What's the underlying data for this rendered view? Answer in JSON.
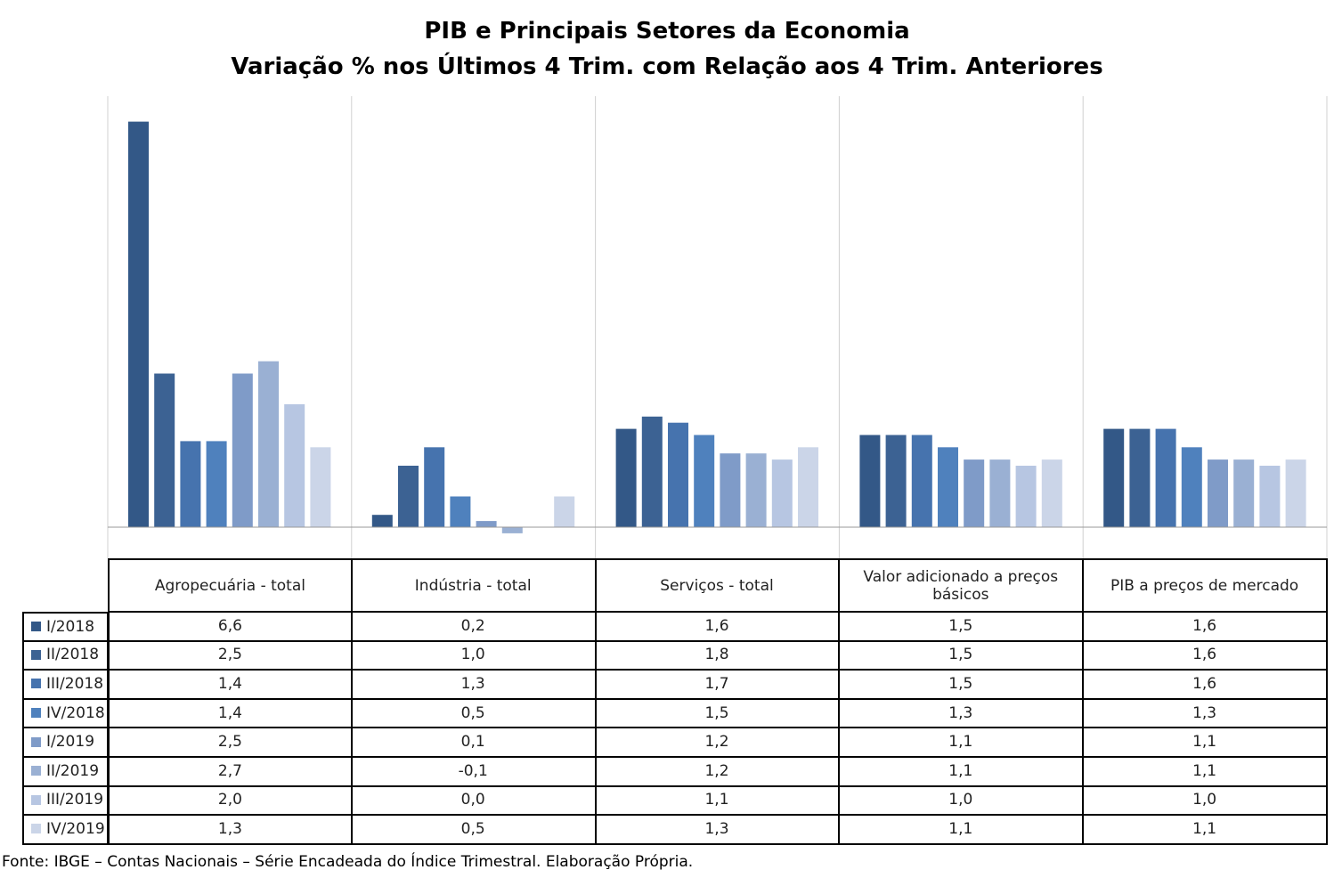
{
  "chart_data": {
    "type": "bar",
    "title": "PIB e Principais Setores da Economia",
    "subtitle": "Variação % nos Últimos 4 Trim. com Relação aos  4 Trim. Anteriores",
    "categories": [
      "Agropecuária - total",
      "Indústria - total",
      "Serviços - total",
      "Valor adicionado a preços básicos",
      "PIB a preços de mercado"
    ],
    "series": [
      {
        "name": "I/2018",
        "color": "#335887",
        "values": [
          6.6,
          0.2,
          1.6,
          1.5,
          1.6
        ],
        "labels": [
          "6,6",
          "0,2",
          "1,6",
          "1,5",
          "1,6"
        ]
      },
      {
        "name": "II/2018",
        "color": "#3C6293",
        "values": [
          2.5,
          1.0,
          1.8,
          1.5,
          1.6
        ],
        "labels": [
          "2,5",
          "1,0",
          "1,8",
          "1,5",
          "1,6"
        ]
      },
      {
        "name": "III/2018",
        "color": "#4673AE",
        "values": [
          1.4,
          1.3,
          1.7,
          1.5,
          1.6
        ],
        "labels": [
          "1,4",
          "1,3",
          "1,7",
          "1,5",
          "1,6"
        ]
      },
      {
        "name": "IV/2018",
        "color": "#4F81BD",
        "values": [
          1.4,
          0.5,
          1.5,
          1.3,
          1.3
        ],
        "labels": [
          "1,4",
          "0,5",
          "1,5",
          "1,3",
          "1,3"
        ]
      },
      {
        "name": "I/2019",
        "color": "#7F9BC8",
        "values": [
          2.5,
          0.1,
          1.2,
          1.1,
          1.1
        ],
        "labels": [
          "2,5",
          "0,1",
          "1,2",
          "1,1",
          "1,1"
        ]
      },
      {
        "name": "II/2019",
        "color": "#9AB0D3",
        "values": [
          2.7,
          -0.1,
          1.2,
          1.1,
          1.1
        ],
        "labels": [
          "2,7",
          "-0,1",
          "1,2",
          "1,1",
          "1,1"
        ]
      },
      {
        "name": "III/2019",
        "color": "#B7C6E2",
        "values": [
          2.0,
          0.0,
          1.1,
          1.0,
          1.0
        ],
        "labels": [
          "2,0",
          "0,0",
          "1,1",
          "1,0",
          "1,0"
        ]
      },
      {
        "name": "IV/2019",
        "color": "#CBD5E8",
        "values": [
          1.3,
          0.5,
          1.3,
          1.1,
          1.1
        ],
        "labels": [
          "1,3",
          "0,5",
          "1,3",
          "1,1",
          "1,1"
        ]
      }
    ],
    "ylim": [
      -0.4,
      7.0
    ],
    "grid": false,
    "legend": "table-left"
  },
  "source": "Fonte: IBGE – Contas Nacionais – Série Encadeada do Índice Trimestral. Elaboração Própria."
}
